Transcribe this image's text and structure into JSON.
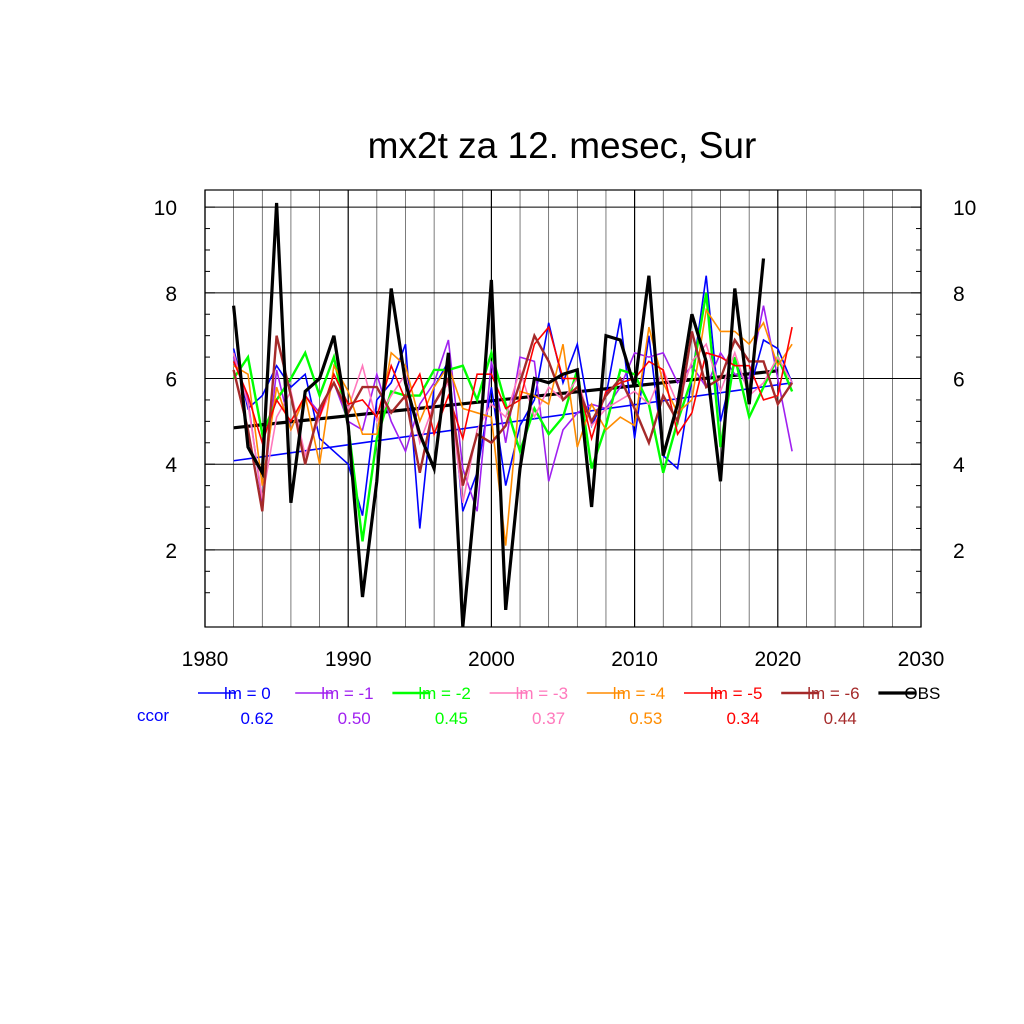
{
  "chart_data": {
    "type": "line",
    "title": "mx2t za 12. mesec, Sur",
    "xlabel": "",
    "ylabel": "",
    "xlim": [
      1980,
      2030
    ],
    "ylim": [
      0.2,
      10.4
    ],
    "x_ticks": [
      1980,
      1990,
      2000,
      2010,
      2020,
      2030
    ],
    "y_ticks": [
      2,
      4,
      6,
      8,
      10
    ],
    "grid": true,
    "x": [
      1982,
      1983,
      1984,
      1985,
      1986,
      1987,
      1988,
      1989,
      1990,
      1991,
      1992,
      1993,
      1994,
      1995,
      1996,
      1997,
      1998,
      1999,
      2000,
      2001,
      2002,
      2003,
      2004,
      2005,
      2006,
      2007,
      2008,
      2009,
      2010,
      2011,
      2012,
      2013,
      2014,
      2015,
      2016,
      2017,
      2018,
      2019,
      2020,
      2021
    ],
    "series": [
      {
        "name": "lm = 0",
        "color": "#0000ff",
        "width": 1.6,
        "values": [
          6.7,
          5.3,
          5.6,
          6.3,
          5.8,
          6.1,
          4.6,
          4.3,
          4.0,
          2.8,
          5.5,
          5.9,
          6.8,
          2.5,
          5.8,
          6.4,
          2.9,
          3.8,
          5.8,
          3.5,
          4.9,
          5.5,
          7.3,
          5.9,
          6.8,
          4.9,
          5.6,
          7.4,
          4.6,
          7.0,
          4.2,
          3.9,
          6.0,
          8.4,
          5.0,
          6.4,
          5.7,
          6.9,
          6.7,
          5.9
        ]
      },
      {
        "name": "lm = -1",
        "color": "#a020f0",
        "width": 1.6,
        "values": [
          6.5,
          5.5,
          3.1,
          6.2,
          4.8,
          5.6,
          5.2,
          5.9,
          5.0,
          4.8,
          6.1,
          5.0,
          4.3,
          5.4,
          5.9,
          6.9,
          3.9,
          2.9,
          6.4,
          4.5,
          6.5,
          6.4,
          3.6,
          4.8,
          5.2,
          5.4,
          5.3,
          5.8,
          6.6,
          6.5,
          6.6,
          5.9,
          6.3,
          5.8,
          6.6,
          6.1,
          6.0,
          7.7,
          6.0,
          4.3
        ]
      },
      {
        "name": "lm = -2",
        "color": "#00ff00",
        "width": 2.4,
        "values": [
          6.0,
          6.5,
          4.7,
          5.5,
          6.0,
          6.6,
          5.6,
          6.5,
          4.9,
          2.2,
          4.6,
          5.7,
          5.6,
          5.6,
          6.2,
          6.2,
          6.3,
          5.5,
          6.6,
          5.4,
          4.3,
          5.3,
          4.7,
          5.1,
          6.2,
          3.9,
          4.9,
          6.2,
          6.1,
          5.4,
          3.8,
          5.0,
          6.0,
          8.0,
          4.4,
          6.5,
          5.1,
          5.8,
          6.5,
          5.7
        ]
      },
      {
        "name": "lm = -3",
        "color": "#ff78bc",
        "width": 1.6,
        "values": [
          6.6,
          5.4,
          3.2,
          5.1,
          5.7,
          4.2,
          5.1,
          5.9,
          5.3,
          6.3,
          5.0,
          5.6,
          6.1,
          4.5,
          5.4,
          5.9,
          3.1,
          4.8,
          5.4,
          5.1,
          6.2,
          5.1,
          5.8,
          5.5,
          6.0,
          4.9,
          5.3,
          5.5,
          5.7,
          5.4,
          6.2,
          5.4,
          6.4,
          6.8,
          5.7,
          6.6,
          5.6,
          5.9,
          6.5,
          5.9
        ]
      },
      {
        "name": "lm = -4",
        "color": "#ff8c00",
        "width": 1.6,
        "values": [
          6.3,
          6.1,
          3.5,
          5.8,
          4.8,
          5.6,
          4.0,
          6.3,
          5.7,
          4.7,
          4.7,
          6.6,
          6.3,
          5.0,
          5.8,
          6.3,
          5.3,
          5.2,
          5.1,
          2.1,
          5.7,
          5.6,
          5.4,
          6.8,
          4.4,
          5.4,
          4.8,
          5.1,
          4.9,
          7.2,
          5.9,
          5.2,
          5.5,
          7.6,
          7.1,
          7.1,
          6.8,
          7.3,
          6.3,
          6.8
        ]
      },
      {
        "name": "lm = -5",
        "color": "#ff0000",
        "width": 1.6,
        "values": [
          6.4,
          5.6,
          4.5,
          5.5,
          5.0,
          5.6,
          5.1,
          6.1,
          5.4,
          5.5,
          5.1,
          6.3,
          5.5,
          6.1,
          4.7,
          5.6,
          4.6,
          6.1,
          6.1,
          5.3,
          5.5,
          6.8,
          7.2,
          6.0,
          6.0,
          4.6,
          5.7,
          5.9,
          6.0,
          6.4,
          6.2,
          4.7,
          5.2,
          6.6,
          6.5,
          6.3,
          6.3,
          5.5,
          5.6,
          7.2
        ]
      },
      {
        "name": "lm = -6",
        "color": "#a52a2a",
        "width": 2.4,
        "values": [
          6.2,
          4.8,
          2.9,
          7.0,
          5.6,
          4.0,
          5.3,
          5.9,
          5.2,
          5.8,
          5.8,
          5.2,
          5.6,
          3.8,
          5.4,
          6.0,
          3.5,
          4.7,
          4.5,
          4.9,
          5.9,
          7.0,
          6.4,
          5.5,
          5.8,
          5.0,
          5.6,
          6.0,
          5.3,
          4.5,
          5.6,
          5.0,
          7.1,
          5.8,
          6.0,
          6.9,
          6.4,
          6.4,
          5.4,
          5.9
        ]
      },
      {
        "name": "OBS",
        "color": "#000000",
        "width": 3.2,
        "values": [
          7.7,
          4.4,
          3.8,
          10.1,
          3.1,
          5.7,
          6.0,
          7.0,
          4.9,
          0.9,
          3.6,
          8.1,
          5.9,
          4.7,
          3.9,
          6.6,
          0.2,
          3.7,
          8.3,
          0.6,
          3.9,
          6.0,
          5.9,
          6.1,
          6.2,
          3.0,
          7.0,
          6.9,
          5.8,
          8.4,
          4.2,
          5.4,
          7.5,
          6.4,
          3.6,
          8.1,
          5.4,
          8.8,
          null,
          null
        ]
      }
    ],
    "trends": [
      {
        "name": "lm = 0 trend",
        "color": "#0000ff",
        "width": 1.6,
        "x": [
          1982,
          2021
        ],
        "y": [
          4.08,
          5.9
        ]
      },
      {
        "name": "OBS trend",
        "color": "#000000",
        "width": 3.2,
        "x": [
          1982,
          2020
        ],
        "y": [
          4.85,
          6.18
        ]
      }
    ],
    "ccor_label": "ccor",
    "ccor_color": "#0000ff",
    "ccor_values": [
      "0.62",
      "0.50",
      "0.45",
      "0.37",
      "0.53",
      "0.34",
      "0.44"
    ],
    "legend_placement": "bottom"
  }
}
